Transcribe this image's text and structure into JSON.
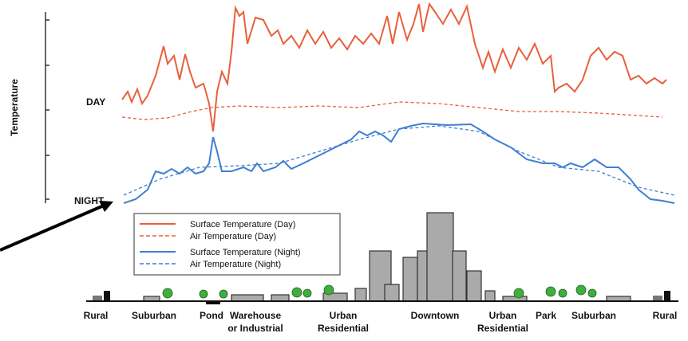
{
  "axis": {
    "label": "Temperature",
    "day_label": "DAY",
    "night_label": "NIGHT"
  },
  "legend": [
    "Surface Temperature (Day)",
    "Air Temperature  (Day)",
    "Surface Temperature (Night)",
    "Air Temperature (Night)"
  ],
  "zones": [
    [
      "Rural"
    ],
    [
      "Suburban"
    ],
    [
      "Pond"
    ],
    [
      "Warehouse",
      "or Industrial"
    ],
    [
      "Urban",
      "Residential"
    ],
    [
      "Downtown"
    ],
    [
      "Urban",
      "Residential"
    ],
    [
      "Park"
    ],
    [
      "Suburban"
    ],
    [
      "Rural"
    ]
  ]
}
